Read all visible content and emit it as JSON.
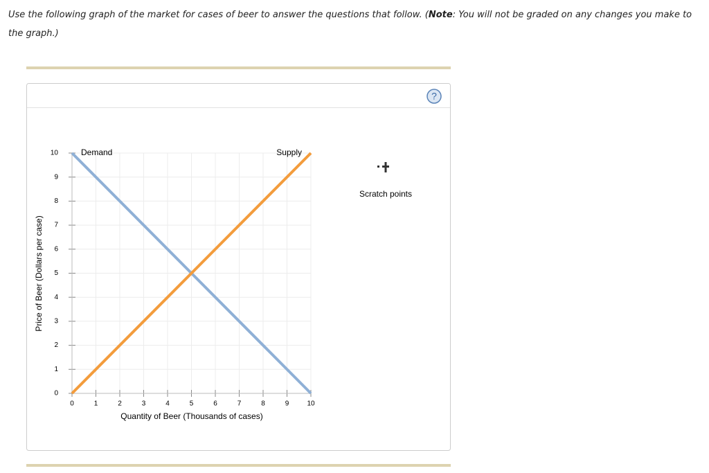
{
  "instructions": {
    "text_before": "Use the following graph of the market for cases of beer to answer the questions that follow. (",
    "note_label": "Note",
    "text_after": ": You will not be graded on any changes you make to the graph.)"
  },
  "chart_data": {
    "type": "line",
    "x": [
      0,
      10
    ],
    "series": [
      {
        "name": "Demand",
        "color": "#8fb0d6",
        "values": [
          10,
          0
        ]
      },
      {
        "name": "Supply",
        "color": "#f39c3c",
        "values": [
          0,
          10
        ]
      }
    ],
    "xlabel": "Quantity of Beer (Thousands of cases)",
    "ylabel": "Price of Beer (Dollars per case)",
    "xlim": [
      0,
      10
    ],
    "ylim": [
      0,
      10
    ],
    "xticks": [
      0,
      1,
      2,
      3,
      4,
      5,
      6,
      7,
      8,
      9,
      10
    ],
    "yticks": [
      0,
      1,
      2,
      3,
      4,
      5,
      6,
      7,
      8,
      9,
      10
    ],
    "grid": true
  },
  "tools": {
    "scratch_points": "Scratch points",
    "help": "?"
  }
}
